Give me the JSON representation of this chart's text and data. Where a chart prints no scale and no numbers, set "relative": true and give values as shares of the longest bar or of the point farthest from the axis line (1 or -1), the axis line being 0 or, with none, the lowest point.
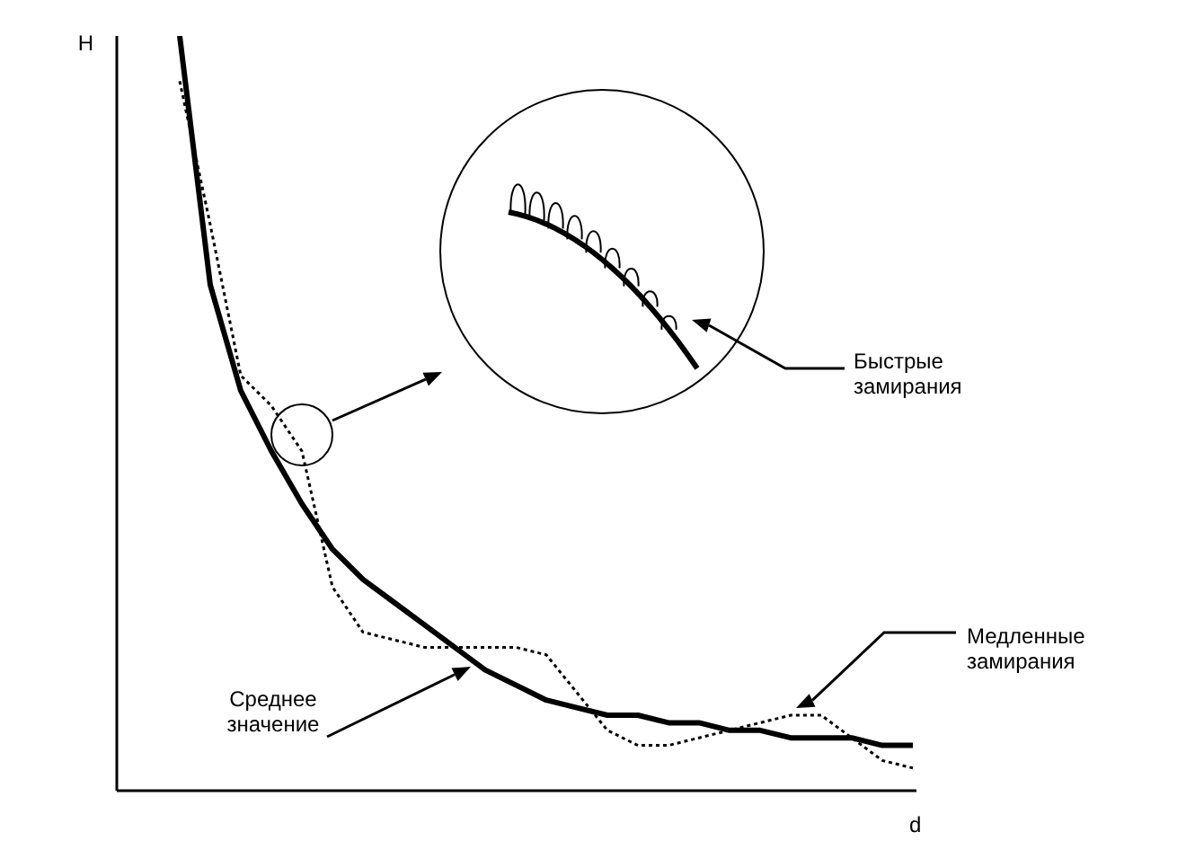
{
  "chart_data": {
    "type": "line",
    "relative": true,
    "xlabel": "d",
    "ylabel": "H",
    "categories": [
      null,
      null,
      null,
      null,
      null,
      null,
      null,
      null,
      null,
      null,
      null,
      null,
      null,
      null,
      null,
      null,
      null,
      null,
      null,
      null,
      null,
      null,
      null,
      null,
      null
    ],
    "series": [
      {
        "color": "#000000",
        "line_style": "solid",
        "values": [
          1.0,
          0.67,
          0.53,
          0.45,
          0.38,
          0.32,
          0.28,
          0.25,
          0.22,
          0.19,
          0.16,
          0.14,
          0.12,
          0.11,
          0.1,
          0.1,
          0.09,
          0.09,
          0.08,
          0.08,
          0.07,
          0.07,
          0.07,
          0.06,
          0.06
        ]
      },
      {
        "color": "#000000",
        "line_style": "dotted",
        "values": [
          0.94,
          0.75,
          0.55,
          0.51,
          0.45,
          0.27,
          0.21,
          0.2,
          0.19,
          0.19,
          0.19,
          0.19,
          0.18,
          0.13,
          0.08,
          0.06,
          0.06,
          0.07,
          0.08,
          0.09,
          0.1,
          0.1,
          0.07,
          0.04,
          0.03
        ]
      }
    ],
    "annotations": [
      "Быстрые замирания",
      "Медленные замирания",
      "Среднее значение"
    ]
  }
}
